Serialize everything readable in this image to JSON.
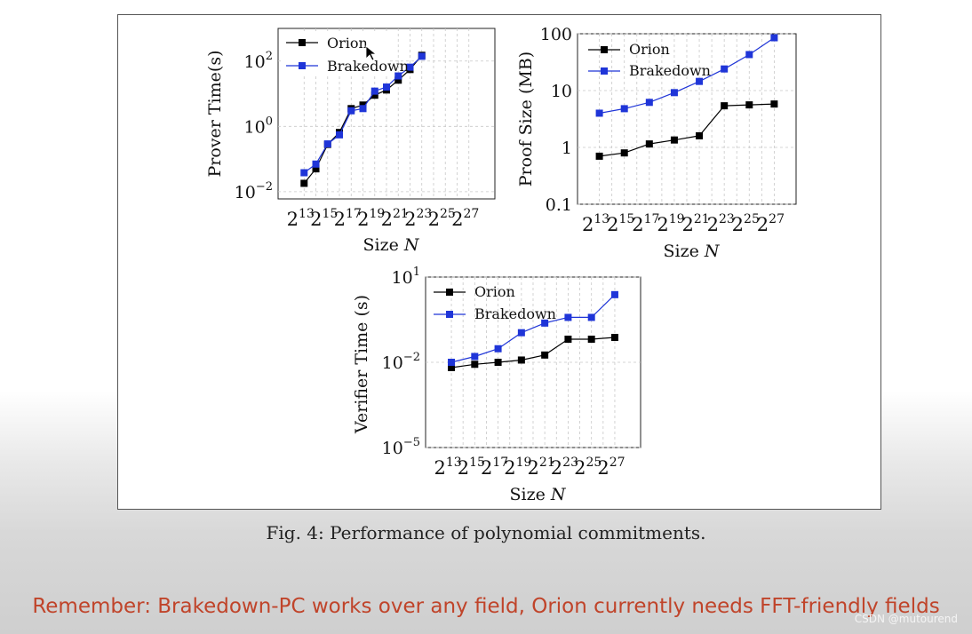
{
  "chart_data": [
    {
      "type": "line",
      "id": "prover",
      "title": "",
      "ylabel": "Prover Time(s)",
      "xlabel_text": "Size ",
      "xlabel_var": "N",
      "yscale": "log",
      "ylim": [
        0.006,
        1000
      ],
      "ytick_values": [
        0.01,
        1,
        100
      ],
      "ytick_exps": [
        "−2",
        "0",
        "2"
      ],
      "x_exponents": [
        "13",
        "15",
        "17",
        "19",
        "21",
        "23",
        "25",
        "27"
      ],
      "x_points": [
        13,
        14,
        15,
        16,
        17,
        18,
        19,
        20,
        21,
        22,
        23,
        24,
        25,
        26,
        27
      ],
      "series": [
        {
          "name": "Orion",
          "color": "#000000",
          "x": [
            13,
            14,
            15,
            16,
            17,
            18,
            19,
            20,
            21,
            22,
            23
          ],
          "values": [
            0.018,
            0.05,
            0.28,
            0.65,
            3.5,
            4.5,
            9,
            13,
            26,
            55,
            150
          ]
        },
        {
          "name": "Brakedown",
          "color": "#1f35d8",
          "x": [
            13,
            14,
            15,
            16,
            17,
            18,
            19,
            20,
            21,
            22,
            23
          ],
          "values": [
            0.038,
            0.07,
            0.29,
            0.55,
            3.0,
            3.5,
            12,
            16,
            35,
            65,
            140
          ]
        }
      ],
      "legend_position": "top-left"
    },
    {
      "type": "line",
      "id": "proof",
      "ylabel": "Proof Size (MB)",
      "xlabel_text": "Size ",
      "xlabel_var": "N",
      "yscale": "log",
      "ylim": [
        0.1,
        100
      ],
      "ytick_values": [
        0.1,
        1,
        10,
        100
      ],
      "ytick_labels": [
        "0.1",
        "1",
        "10",
        "100"
      ],
      "x_exponents": [
        "13",
        "15",
        "17",
        "19",
        "21",
        "23",
        "25",
        "27"
      ],
      "series": [
        {
          "name": "Orion",
          "color": "#000000",
          "x": [
            13,
            15,
            17,
            19,
            21,
            23,
            25,
            27
          ],
          "values": [
            0.7,
            0.8,
            1.15,
            1.35,
            1.6,
            5.4,
            5.6,
            5.8
          ]
        },
        {
          "name": "Brakedown",
          "color": "#1f35d8",
          "x": [
            13,
            15,
            17,
            19,
            21,
            23,
            25,
            27
          ],
          "values": [
            4.0,
            4.8,
            6.2,
            9.2,
            14.5,
            24,
            43,
            85
          ]
        }
      ],
      "legend_position": "top-left"
    },
    {
      "type": "line",
      "id": "verifier",
      "ylabel": "Verifier Time (s)",
      "xlabel_text": "Size ",
      "xlabel_var": "N",
      "yscale": "log",
      "ylim": [
        1e-05,
        10
      ],
      "ytick_values": [
        1e-05,
        0.01,
        10
      ],
      "ytick_exps": [
        "−5",
        "−2",
        "1"
      ],
      "x_exponents": [
        "13",
        "15",
        "17",
        "19",
        "21",
        "23",
        "25",
        "27"
      ],
      "series": [
        {
          "name": "Orion",
          "color": "#000000",
          "x": [
            13,
            15,
            17,
            19,
            21,
            23,
            25,
            27
          ],
          "values": [
            0.0065,
            0.0085,
            0.01,
            0.012,
            0.018,
            0.065,
            0.065,
            0.075
          ]
        },
        {
          "name": "Brakedown",
          "color": "#1f35d8",
          "x": [
            13,
            15,
            17,
            19,
            21,
            23,
            25,
            27
          ],
          "values": [
            0.01,
            0.016,
            0.03,
            0.11,
            0.24,
            0.38,
            0.38,
            2.4
          ]
        }
      ],
      "legend_position": "top-left"
    }
  ],
  "legend_orion_1": "Orion",
  "legend_brakedown_1": "Brakedown",
  "legend_orion_2": "Orion",
  "legend_brakedown_2": "Brakedown",
  "legend_orion_3": "Orion",
  "legend_brakedown_3": "Brakedown",
  "caption": "Fig. 4: Performance of polynomial commitments.",
  "remember": "Remember: Brakedown-PC works over any field, Orion currently needs FFT-friendly fields",
  "watermark": "CSDN @mutourend",
  "colors": {
    "orion": "#000000",
    "brakedown": "#1f35d8",
    "remember_text": "#c0442a"
  }
}
